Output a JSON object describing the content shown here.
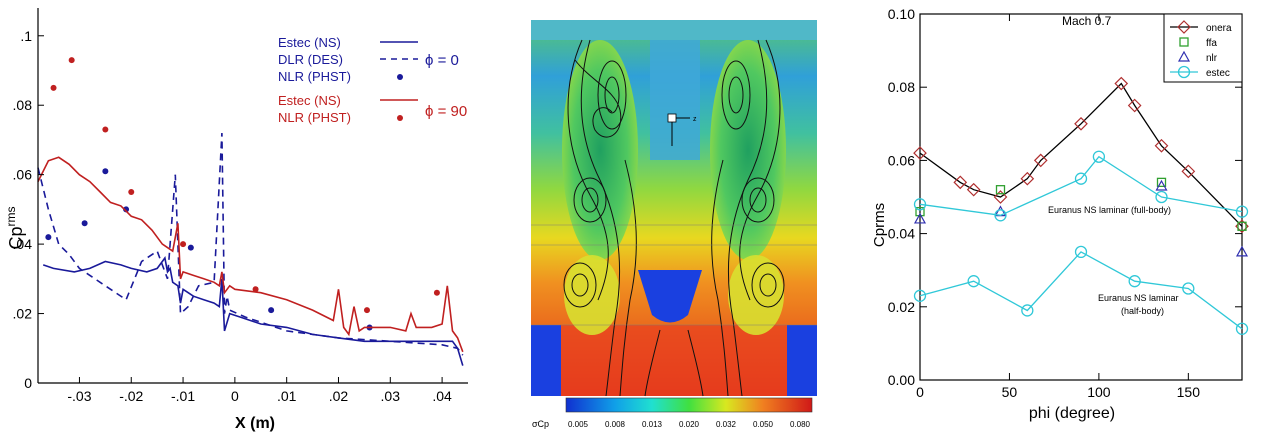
{
  "chart_data": [
    {
      "type": "line",
      "xlabel": "X (m)",
      "ylabel": "Cp",
      "ylabel_sup": "rms",
      "xlim": [
        -0.038,
        0.045
      ],
      "ylim": [
        0,
        0.108
      ],
      "x_ticks": [
        -0.03,
        -0.02,
        -0.01,
        0,
        0.01,
        0.02,
        0.03,
        0.04
      ],
      "x_tick_labels": [
        "-.03",
        "-.02",
        "-.01",
        "0",
        ".01",
        ".02",
        ".03",
        ".04"
      ],
      "y_ticks": [
        0,
        0.02,
        0.04,
        0.06,
        0.08,
        0.1
      ],
      "y_tick_labels": [
        "0",
        ".02",
        ".04",
        ".06",
        ".08",
        ".1"
      ],
      "legend_position": "top-right",
      "group_labels": [
        {
          "text": "ϕ = 0",
          "color": "#1a1a9a"
        },
        {
          "text": "ϕ = 90",
          "color": "#c02020"
        }
      ],
      "series": [
        {
          "name": "Estec (NS)",
          "group": 0,
          "style": "solid",
          "color": "#1a1a9a",
          "x": [
            -0.037,
            -0.035,
            -0.031,
            -0.028,
            -0.025,
            -0.022,
            -0.02,
            -0.017,
            -0.015,
            -0.0135,
            -0.013,
            -0.0125,
            -0.012,
            -0.011,
            -0.0105,
            -0.01,
            -0.009,
            -0.008,
            -0.006,
            -0.004,
            -0.003,
            -0.0025,
            -0.002,
            -0.001,
            0.001,
            0.005,
            0.01,
            0.015,
            0.02,
            0.025,
            0.03,
            0.035,
            0.04,
            0.042,
            0.043,
            0.044
          ],
          "y": [
            0.034,
            0.033,
            0.032,
            0.033,
            0.035,
            0.034,
            0.033,
            0.032,
            0.033,
            0.036,
            0.032,
            0.033,
            0.029,
            0.028,
            0.023,
            0.027,
            0.026,
            0.025,
            0.024,
            0.023,
            0.022,
            0.03,
            0.015,
            0.02,
            0.019,
            0.017,
            0.016,
            0.014,
            0.013,
            0.012,
            0.012,
            0.012,
            0.012,
            0.012,
            0.01,
            0.005
          ]
        },
        {
          "name": "DLR (DES)",
          "group": 0,
          "style": "dashed",
          "color": "#1a1a9a",
          "x": [
            -0.038,
            -0.036,
            -0.034,
            -0.032,
            -0.03,
            -0.025,
            -0.021,
            -0.018,
            -0.015,
            -0.013,
            -0.0115,
            -0.0105,
            -0.009,
            -0.007,
            -0.004,
            -0.0025,
            -0.002,
            -0.0015,
            -0.001,
            0.002,
            0.01,
            0.02,
            0.03,
            0.04,
            0.043,
            0.044
          ],
          "y": [
            0.062,
            0.05,
            0.04,
            0.037,
            0.033,
            0.028,
            0.024,
            0.035,
            0.038,
            0.03,
            0.06,
            0.02,
            0.022,
            0.028,
            0.029,
            0.072,
            0.02,
            0.025,
            0.021,
            0.019,
            0.015,
            0.013,
            0.012,
            0.011,
            0.01,
            0.008
          ]
        },
        {
          "name": "NLR (PHST)",
          "group": 0,
          "style": "dots",
          "color": "#1a1a9a",
          "x": [
            -0.036,
            -0.029,
            -0.025,
            -0.021,
            -0.0085,
            0.007,
            0.026
          ],
          "y": [
            0.042,
            0.046,
            0.061,
            0.05,
            0.039,
            0.021,
            0.016
          ]
        },
        {
          "name": "Estec (NS)",
          "group": 1,
          "style": "solid",
          "color": "#c02020",
          "x": [
            -0.038,
            -0.036,
            -0.034,
            -0.032,
            -0.03,
            -0.028,
            -0.026,
            -0.024,
            -0.022,
            -0.02,
            -0.018,
            -0.016,
            -0.014,
            -0.012,
            -0.011,
            -0.0105,
            -0.01,
            -0.008,
            -0.006,
            -0.004,
            -0.003,
            -0.0025,
            -0.002,
            -0.001,
            0,
            0.005,
            0.01,
            0.015,
            0.019,
            0.02,
            0.021,
            0.022,
            0.023,
            0.024,
            0.025,
            0.03,
            0.033,
            0.034,
            0.035,
            0.038,
            0.04,
            0.041,
            0.042,
            0.043,
            0.044
          ],
          "y": [
            0.058,
            0.064,
            0.065,
            0.063,
            0.06,
            0.058,
            0.055,
            0.052,
            0.051,
            0.048,
            0.047,
            0.044,
            0.04,
            0.038,
            0.046,
            0.03,
            0.032,
            0.031,
            0.03,
            0.029,
            0.028,
            0.032,
            0.026,
            0.028,
            0.027,
            0.026,
            0.024,
            0.021,
            0.018,
            0.027,
            0.016,
            0.014,
            0.022,
            0.015,
            0.016,
            0.016,
            0.015,
            0.02,
            0.016,
            0.016,
            0.017,
            0.028,
            0.015,
            0.013,
            0.009
          ]
        },
        {
          "name": "NLR (PHST)",
          "group": 1,
          "style": "dots",
          "color": "#c02020",
          "x": [
            -0.035,
            -0.0315,
            -0.025,
            -0.02,
            -0.01,
            0.004,
            0.0255,
            0.039
          ],
          "y": [
            0.085,
            0.093,
            0.073,
            0.055,
            0.04,
            0.027,
            0.021,
            0.026
          ]
        }
      ]
    },
    {
      "type": "heatmap",
      "colorbar_label": "σCp",
      "colorbar_ticks": [
        "0.005",
        "0.008",
        "0.013",
        "0.020",
        "0.032",
        "0.050",
        "0.080"
      ],
      "marker_label": "z"
    },
    {
      "type": "line",
      "title": "Mach  0.7",
      "xlabel": "phi (degree)",
      "ylabel": "Cprms",
      "xlim": [
        0,
        180
      ],
      "ylim": [
        0,
        0.1
      ],
      "x_ticks": [
        0,
        50,
        100,
        150
      ],
      "y_ticks": [
        0,
        0.02,
        0.04,
        0.06,
        0.08,
        0.1
      ],
      "y_tick_labels": [
        "0.00",
        "0.02",
        "0.04",
        "0.06",
        "0.08",
        "0.10"
      ],
      "legend_position": "top-right",
      "series": [
        {
          "name": "onera",
          "marker": "diamond",
          "line": true,
          "color": "#000000",
          "marker_color": "#b03030",
          "x": [
            0,
            22.5,
            30,
            45,
            60,
            67.5,
            90,
            112.5,
            120,
            135,
            150,
            180
          ],
          "y": [
            0.062,
            0.054,
            0.052,
            0.05,
            0.055,
            0.06,
            0.07,
            0.081,
            0.075,
            0.064,
            0.057,
            0.042
          ]
        },
        {
          "name": "ffa",
          "marker": "square",
          "line": false,
          "color": "#30a030",
          "x": [
            0,
            45,
            135,
            180
          ],
          "y": [
            0.046,
            0.052,
            0.054,
            0.042
          ]
        },
        {
          "name": "nlr",
          "marker": "triangle",
          "line": false,
          "color": "#3030b0",
          "x": [
            0,
            45,
            135,
            180
          ],
          "y": [
            0.044,
            0.046,
            0.053,
            0.035
          ]
        },
        {
          "name": "estec",
          "marker": "circle",
          "line": true,
          "color": "#30c8d8",
          "x": [
            0,
            45,
            90,
            100,
            135,
            180
          ],
          "y": [
            0.048,
            0.045,
            0.055,
            0.061,
            0.05,
            0.046
          ]
        },
        {
          "name": "",
          "marker": "circle",
          "line": true,
          "color": "#30c8d8",
          "legend": false,
          "x": [
            0,
            30,
            60,
            90,
            120,
            150,
            180
          ],
          "y": [
            0.023,
            0.027,
            0.019,
            0.035,
            0.027,
            0.025,
            0.014
          ]
        }
      ],
      "annotations": [
        {
          "text": "Euranus NS laminar (full-body)"
        },
        {
          "text": "Euranus NS laminar"
        },
        {
          "text": "(half-body)"
        }
      ]
    }
  ]
}
